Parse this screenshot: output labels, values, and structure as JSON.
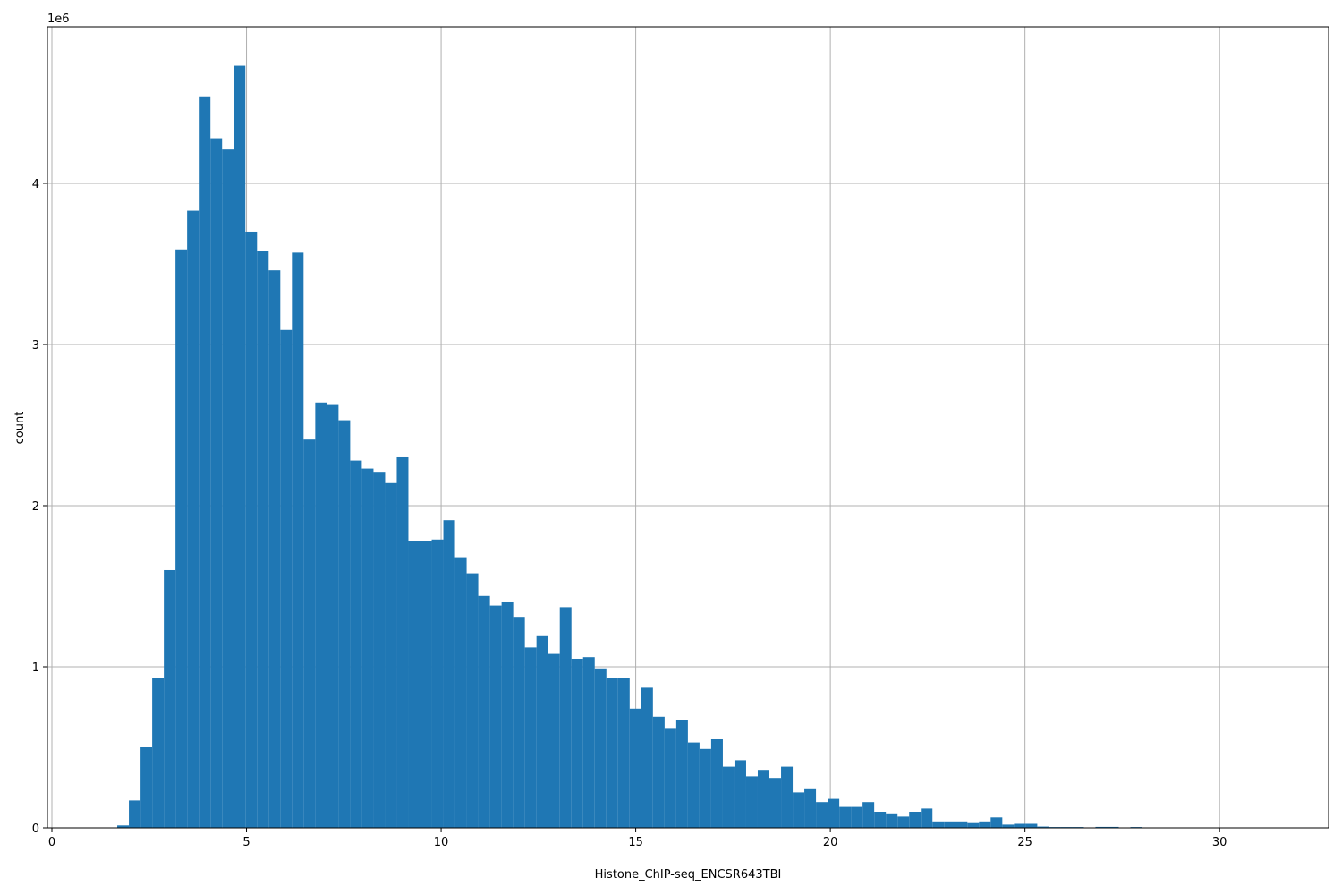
{
  "chart_data": {
    "type": "histogram",
    "xlabel": "Histone_ChIP-seq_ENCSR643TBI",
    "ylabel": "count",
    "y_offset_label": "1e6",
    "color": "#1f77b4",
    "grid": true,
    "xlim": [
      -0.115,
      32.8
    ],
    "ylim": [
      0,
      4972000
    ],
    "xticks": [
      0,
      5,
      10,
      15,
      20,
      25,
      30
    ],
    "yticks": [
      {
        "value": 0,
        "label": "0"
      },
      {
        "value": 1000000,
        "label": "1"
      },
      {
        "value": 2000000,
        "label": "2"
      },
      {
        "value": 3000000,
        "label": "3"
      },
      {
        "value": 4000000,
        "label": "4"
      }
    ],
    "bins": [
      1.38,
      1.679,
      1.978,
      2.278,
      2.577,
      2.876,
      3.175,
      3.474,
      3.774,
      4.073,
      4.372,
      4.671,
      4.97,
      5.27,
      5.569,
      5.868,
      6.167,
      6.466,
      6.766,
      7.065,
      7.364,
      7.663,
      7.962,
      8.262,
      8.561,
      8.86,
      9.159,
      9.458,
      9.758,
      10.057,
      10.356,
      10.655,
      10.954,
      11.254,
      11.553,
      11.852,
      12.151,
      12.45,
      12.75,
      13.049,
      13.348,
      13.647,
      13.946,
      14.246,
      14.545,
      14.844,
      15.143,
      15.442,
      15.742,
      16.041,
      16.34,
      16.639,
      16.938,
      17.238,
      17.537,
      17.836,
      18.135,
      18.434,
      18.734,
      19.033,
      19.332,
      19.631,
      19.93,
      20.23,
      20.529,
      20.828,
      21.127,
      21.426,
      21.726,
      22.025,
      22.324,
      22.623,
      22.922,
      23.222,
      23.521,
      23.82,
      24.119,
      24.418,
      24.718,
      25.017,
      25.316,
      25.615,
      25.914,
      26.214,
      26.513,
      26.812,
      27.111,
      27.41,
      27.71,
      28.009,
      28.308,
      28.607,
      28.906,
      29.206,
      29.505,
      29.804,
      30.103,
      30.402,
      30.702,
      31.001,
      31.3
    ],
    "values": [
      2000,
      15000,
      170000,
      500000,
      930000,
      1600000,
      3590000,
      3830000,
      4540000,
      4280000,
      4210000,
      4730000,
      3700000,
      3580000,
      3460000,
      3090000,
      3570000,
      2410000,
      2640000,
      2630000,
      2530000,
      2280000,
      2230000,
      2210000,
      2140000,
      2300000,
      1780000,
      1780000,
      1790000,
      1910000,
      1680000,
      1580000,
      1440000,
      1380000,
      1400000,
      1310000,
      1120000,
      1190000,
      1080000,
      1370000,
      1050000,
      1060000,
      990000,
      930000,
      930000,
      740000,
      870000,
      690000,
      620000,
      670000,
      530000,
      490000,
      550000,
      380000,
      420000,
      320000,
      360000,
      310000,
      380000,
      220000,
      240000,
      160000,
      180000,
      130000,
      130000,
      160000,
      100000,
      90000,
      70000,
      100000,
      120000,
      40000,
      40000,
      40000,
      35000,
      40000,
      65000,
      20000,
      25000,
      25000,
      8000,
      5000,
      5000,
      5000,
      2000,
      6000,
      6000,
      2000,
      5000,
      1000,
      1000,
      1000,
      500,
      500,
      500,
      500,
      500,
      500,
      500,
      500
    ]
  }
}
